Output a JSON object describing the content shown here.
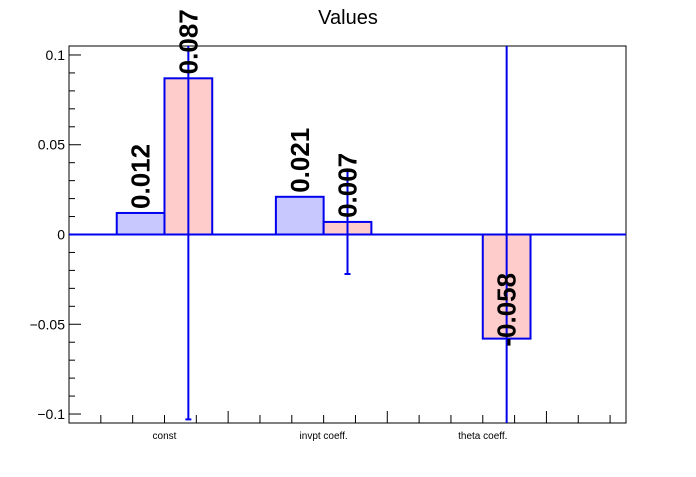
{
  "chart_data": {
    "type": "bar",
    "title": "Values",
    "xlabel": "",
    "ylabel": "",
    "categories": [
      "const",
      "invpt coeff.",
      "theta coeff."
    ],
    "ylim": [
      -0.105,
      0.105
    ],
    "yticks": [
      -0.1,
      -0.05,
      0,
      0.05,
      0.1
    ],
    "ytick_labels": [
      "−0.1",
      "−0.05",
      "0",
      "0.05",
      "0.1"
    ],
    "grid": false,
    "legend": "none",
    "series": [
      {
        "color": "#c8c8ff",
        "edge_color": "#0000ee",
        "values": [
          0.012,
          0.021,
          null
        ],
        "errors": [
          0.0,
          0.0,
          null
        ],
        "labels": [
          "0.012",
          "0.021",
          ""
        ]
      },
      {
        "color": "#ffcccc",
        "edge_color": "#0000ee",
        "values": [
          0.087,
          0.007,
          -0.058
        ],
        "errors": [
          0.19,
          0.029,
          0.35
        ],
        "labels": [
          "0.087",
          "0.007",
          "-0.058"
        ]
      }
    ]
  },
  "colors": {
    "axis": "#000000",
    "zero_line": "#0000ee",
    "bar_edge": "#0000ee",
    "error_bar": "#0000ee"
  }
}
